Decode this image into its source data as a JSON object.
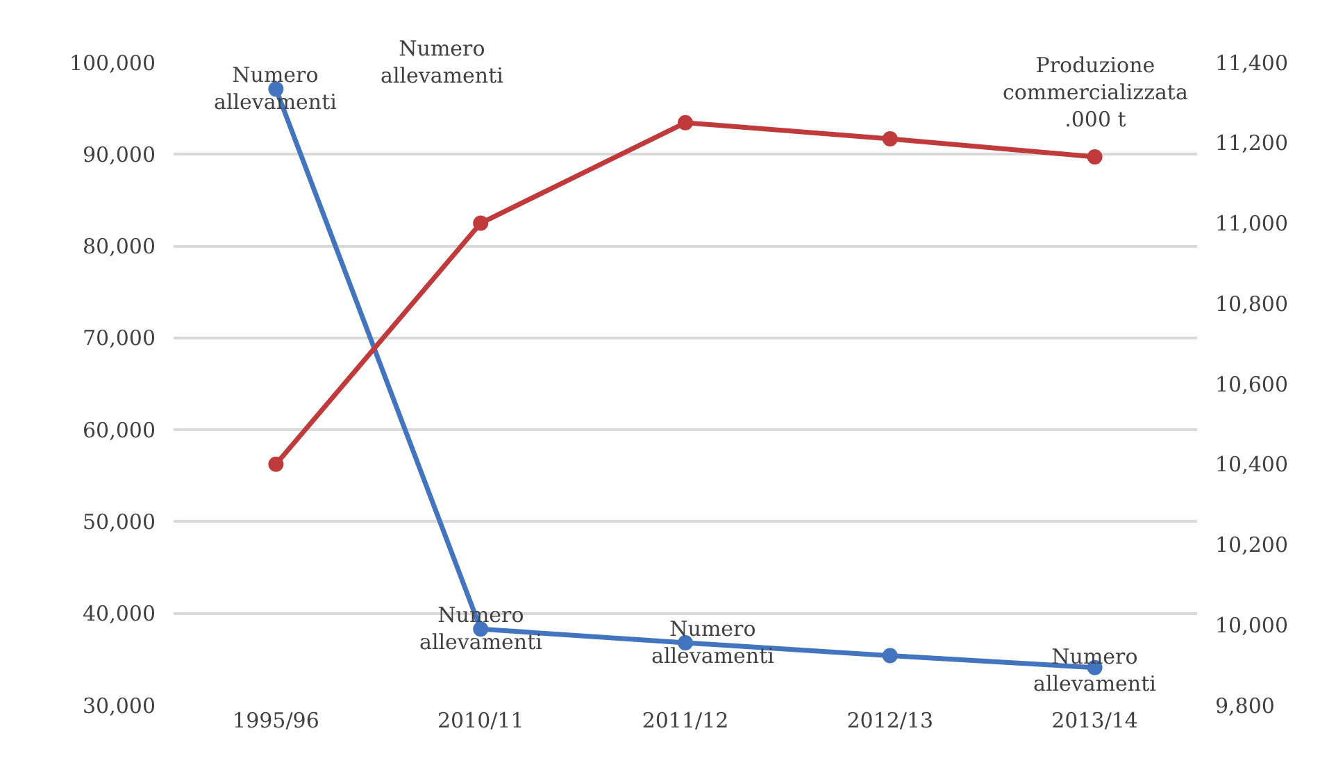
{
  "chart_data": {
    "type": "line",
    "categories": [
      "1995/96",
      "2010/11",
      "2011/12",
      "2012/13",
      "2013/14"
    ],
    "series": [
      {
        "name": "Numero allevamenti",
        "color": "#4274c0",
        "values": [
          97100,
          38300,
          36800,
          35400,
          34100
        ]
      },
      {
        "name": "Produzione commercializzata .000 t",
        "color": "#c0393b",
        "axis": "y2",
        "values": [
          10400,
          11000,
          11250,
          11210,
          11165
        ]
      }
    ],
    "ylim": [
      30000,
      100000
    ],
    "yticks": [
      {
        "value": 30000,
        "label": "30,000"
      },
      {
        "value": 40000,
        "label": "40,000"
      },
      {
        "value": 50000,
        "label": "50,000"
      },
      {
        "value": 60000,
        "label": "60,000"
      },
      {
        "value": 70000,
        "label": "70,000"
      },
      {
        "value": 80000,
        "label": "80,000"
      },
      {
        "value": 90000,
        "label": "90,000"
      },
      {
        "value": 100000,
        "label": "100,000"
      }
    ],
    "y2lim": [
      9800,
      11400
    ],
    "y2ticks": [
      {
        "value": 9800,
        "label": "9,800"
      },
      {
        "value": 10000,
        "label": "10,000"
      },
      {
        "value": 10200,
        "label": "10,200"
      },
      {
        "value": 10400,
        "label": "10,400"
      },
      {
        "value": 10600,
        "label": "10,600"
      },
      {
        "value": 10800,
        "label": "10,800"
      },
      {
        "value": 11000,
        "label": "11,000"
      },
      {
        "value": 11200,
        "label": "11,200"
      },
      {
        "value": 11400,
        "label": "11,400"
      }
    ],
    "annotations": [
      {
        "text": "Numero allevamenti",
        "x": "1995/96",
        "y": 97100
      },
      "Numero allevamenti",
      {
        "text": "Numero allevamenti",
        "x": "2010/11",
        "y": 38300
      },
      {
        "text": "Numero allevamenti",
        "x": "2011/12",
        "y": 36800
      }
    ],
    "grid": "y",
    "legend": false,
    "marker": "circle",
    "line_style": "solid"
  }
}
